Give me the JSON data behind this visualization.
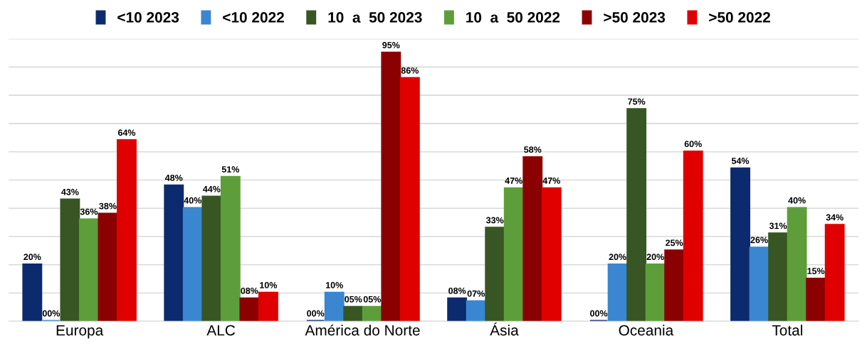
{
  "chart_data": {
    "type": "bar",
    "categories": [
      "Europa",
      "ALC",
      "América do Norte",
      "Ásia",
      "Oceania",
      "Total"
    ],
    "ylim": [
      0,
      100
    ],
    "yticks": [
      {
        "value": 0,
        "label": null
      },
      {
        "value": 10,
        "label": null
      },
      {
        "value": 20,
        "label": null
      },
      {
        "value": 30,
        "label": null
      },
      {
        "value": 40,
        "label": null
      },
      {
        "value": 50,
        "label": null
      },
      {
        "value": 60,
        "label": null
      },
      {
        "value": 70,
        "label": null
      },
      {
        "value": 80,
        "label": null
      },
      {
        "value": 90,
        "label": null
      },
      {
        "value": 100,
        "label": null
      }
    ],
    "grid": "y",
    "legend": "top",
    "series": [
      {
        "name": "<10 2023",
        "color": "#0c2a6e",
        "values": [
          20,
          48,
          0,
          8,
          0,
          54
        ],
        "value_labels": [
          "20%",
          "48%",
          "00%",
          "08%",
          "00%",
          "54%"
        ]
      },
      {
        "name": "<10 2022",
        "color": "#3a86d0",
        "values": [
          0,
          40,
          10,
          7,
          20,
          26
        ],
        "value_labels": [
          "00%",
          "40%",
          "10%",
          "07%",
          "20%",
          "26%"
        ]
      },
      {
        "name": "10  a  50 2023",
        "color": "#375623",
        "values": [
          43,
          44,
          5,
          33,
          75,
          31
        ],
        "value_labels": [
          "43%",
          "44%",
          "05%",
          "33%",
          "75%",
          "31%"
        ]
      },
      {
        "name": "10  a  50 2022",
        "color": "#5e9e3a",
        "values": [
          36,
          51,
          5,
          47,
          20,
          40
        ],
        "value_labels": [
          "36%",
          "51%",
          "05%",
          "47%",
          "20%",
          "40%"
        ]
      },
      {
        "name": ">50 2023",
        "color": "#8b0000",
        "values": [
          38,
          8,
          95,
          58,
          25,
          15
        ],
        "value_labels": [
          "38%",
          "08%",
          "95%",
          "58%",
          "25%",
          "15%"
        ]
      },
      {
        "name": ">50 2022",
        "color": "#e00000",
        "values": [
          64,
          10,
          86,
          47,
          60,
          34
        ],
        "value_labels": [
          "64%",
          "10%",
          "86%",
          "47%",
          "60%",
          "34%"
        ]
      }
    ]
  }
}
